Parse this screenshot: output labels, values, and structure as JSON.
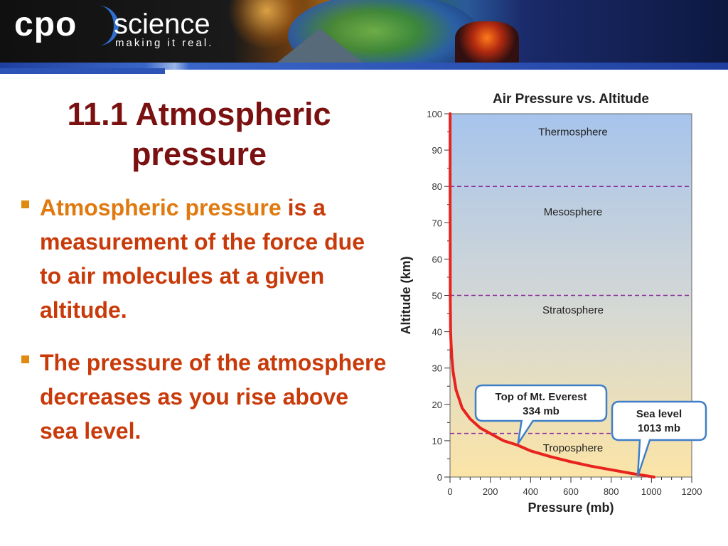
{
  "logo": {
    "brand": "cpo",
    "science": "science",
    "tagline": "making it real."
  },
  "slide": {
    "title_line1": "11.1  Atmospheric",
    "title_line2": "pressure",
    "bullets": [
      {
        "term": "Atmospheric pressure",
        "rest": " is a measurement of the force due to air molecules at a given altitude."
      },
      {
        "text": "The pressure of the atmosphere decreases as you rise above sea level."
      }
    ]
  },
  "colors": {
    "title": "#7a1010",
    "bullet_text": "#c83a0a",
    "term": "#e07a10",
    "curve": "#e8231e",
    "layer_line": "#8a2a9a"
  },
  "chart_data": {
    "type": "line",
    "title": "Air Pressure vs. Altitude",
    "xlabel": "Pressure (mb)",
    "ylabel": "Altitude (km)",
    "xlim": [
      0,
      1200
    ],
    "ylim": [
      0,
      100
    ],
    "x_ticks": [
      "0",
      "200",
      "400",
      "600",
      "800",
      "1000",
      "1200"
    ],
    "y_ticks": [
      "0",
      "10",
      "20",
      "30",
      "40",
      "50",
      "60",
      "70",
      "80",
      "90",
      "100"
    ],
    "series": [
      {
        "x": [
          1013,
          900,
          800,
          700,
          600,
          500,
          400,
          334,
          265,
          200,
          150,
          100,
          60,
          30,
          15,
          9,
          5,
          3,
          1,
          1,
          0.5,
          0.2
        ],
        "y": [
          0,
          1,
          2,
          3,
          4.2,
          5.6,
          7.2,
          8.8,
          10,
          12,
          13.5,
          16,
          19,
          24,
          29,
          33,
          37,
          40,
          50,
          60,
          80,
          100
        ]
      }
    ],
    "layer_boundaries_km": [
      12,
      50,
      80
    ],
    "layer_labels": [
      {
        "text": "Thermosphere",
        "altitude": 95
      },
      {
        "text": "Mesosphere",
        "altitude": 73
      },
      {
        "text": "Stratosphere",
        "altitude": 46
      },
      {
        "text": "Troposphere",
        "altitude": 8
      }
    ],
    "annotations": [
      {
        "line1": "Top of Mt. Everest",
        "line2": "334 mb",
        "x": 334,
        "y": 8.8
      },
      {
        "line1": "Sea level",
        "line2": "1013 mb",
        "x": 1013,
        "y": 0
      }
    ],
    "grid": false,
    "legend": "none"
  }
}
